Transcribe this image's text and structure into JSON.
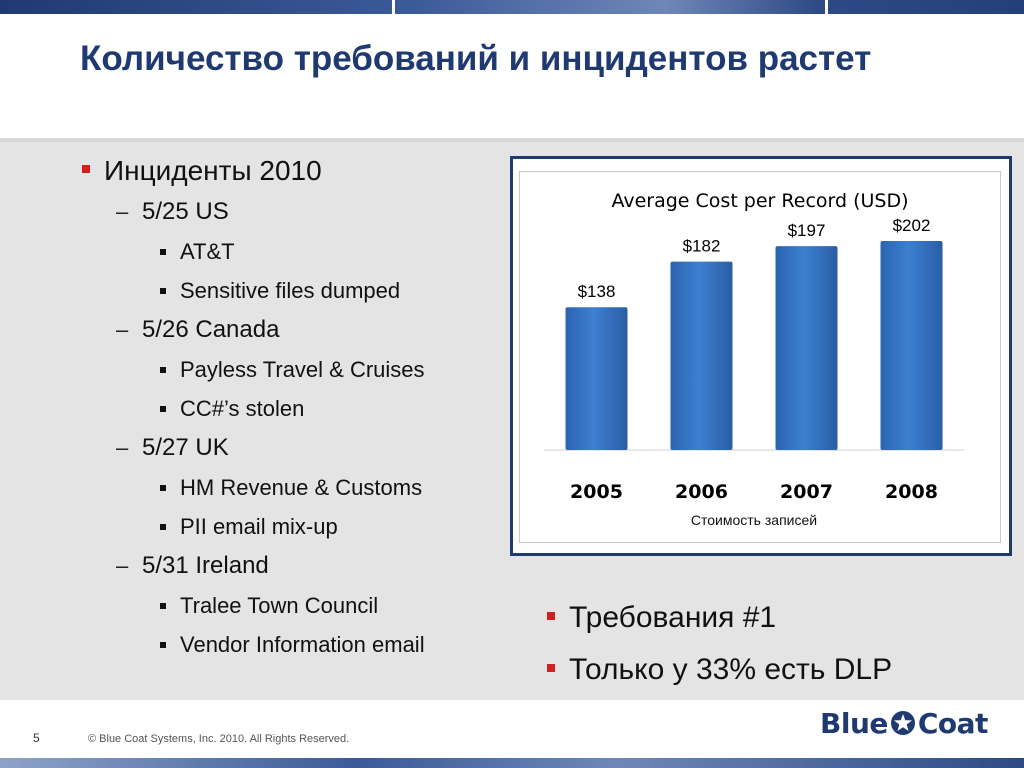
{
  "slide": {
    "title": "Количество требований и инцидентов растет",
    "slide_number": "5",
    "copyright": "© Blue Coat Systems, Inc. 2010.  All Rights Reserved.",
    "logo": {
      "part1": "Blue",
      "part2": "Coat"
    }
  },
  "incidents": {
    "heading": "Инциденты 2010",
    "groups": [
      {
        "label": "5/25 US",
        "items": [
          "AT&T",
          "Sensitive files dumped"
        ]
      },
      {
        "label": "5/26 Canada",
        "items": [
          "Payless Travel & Cruises",
          "CC#’s stolen"
        ]
      },
      {
        "label": "5/27 UK",
        "items": [
          "HM Revenue & Customs",
          "PII email mix-up"
        ]
      },
      {
        "label": "5/31 Ireland",
        "items": [
          "Tralee Town Council",
          "Vendor Information email"
        ]
      }
    ]
  },
  "right_bullets": [
    "Требования #1",
    "Только у 33% есть DLP"
  ],
  "chart_data": {
    "type": "bar",
    "title": "Average Cost per Record (USD)",
    "xlabel": "Стоимость записей",
    "ylabel": "",
    "categories": [
      "2005",
      "2006",
      "2007",
      "2008"
    ],
    "values": [
      138,
      182,
      197,
      202
    ],
    "data_labels": [
      "$138",
      "$182",
      "$197",
      "$202"
    ],
    "ylim": [
      0,
      230
    ],
    "grid": false,
    "bar_color": "#3d7fd1"
  },
  "colors": {
    "title": "#1f3a70",
    "accent": "#d02020",
    "frame": "#1f3a70"
  }
}
